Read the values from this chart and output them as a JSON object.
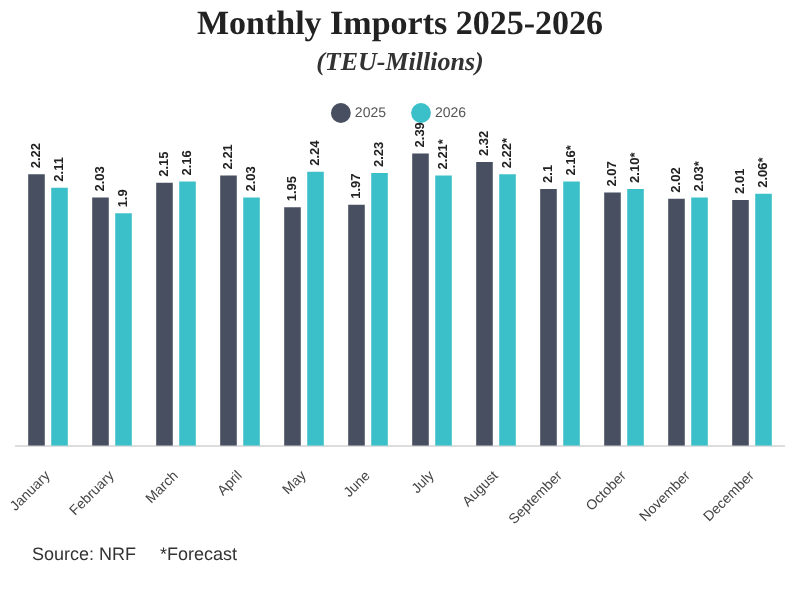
{
  "chart_data": {
    "type": "bar",
    "title": "Monthly Imports 2025-2026",
    "subtitle": "(TEU-Millions)",
    "categories": [
      "January",
      "February",
      "March",
      "April",
      "May",
      "June",
      "July",
      "August",
      "September",
      "October",
      "November",
      "December"
    ],
    "series": [
      {
        "name": "2025",
        "color": "#474f60",
        "values": [
          2.22,
          2.03,
          2.15,
          2.21,
          1.95,
          1.97,
          2.39,
          2.32,
          2.1,
          2.07,
          2.02,
          2.01
        ],
        "value_labels": [
          "2.22",
          "2.03",
          "2.15",
          "2.21",
          "1.95",
          "1.97",
          "2.39",
          "2.32",
          "2.1",
          "2.07",
          "2.02",
          "2.01"
        ]
      },
      {
        "name": "2026",
        "color": "#3bbfc9",
        "values": [
          2.11,
          1.9,
          2.16,
          2.03,
          2.24,
          2.23,
          2.21,
          2.22,
          2.16,
          2.1,
          2.03,
          2.06
        ],
        "value_labels": [
          "2.11",
          "1.9",
          "2.16",
          "2.03",
          "2.24",
          "2.23",
          "2.21*",
          "2.22*",
          "2.16*",
          "2.10*",
          "2.03*",
          "2.06*"
        ]
      }
    ],
    "tick_labels": "x",
    "grid": false,
    "legend": "top",
    "annotations": [
      "Source: NRF",
      "*Forecast"
    ]
  }
}
